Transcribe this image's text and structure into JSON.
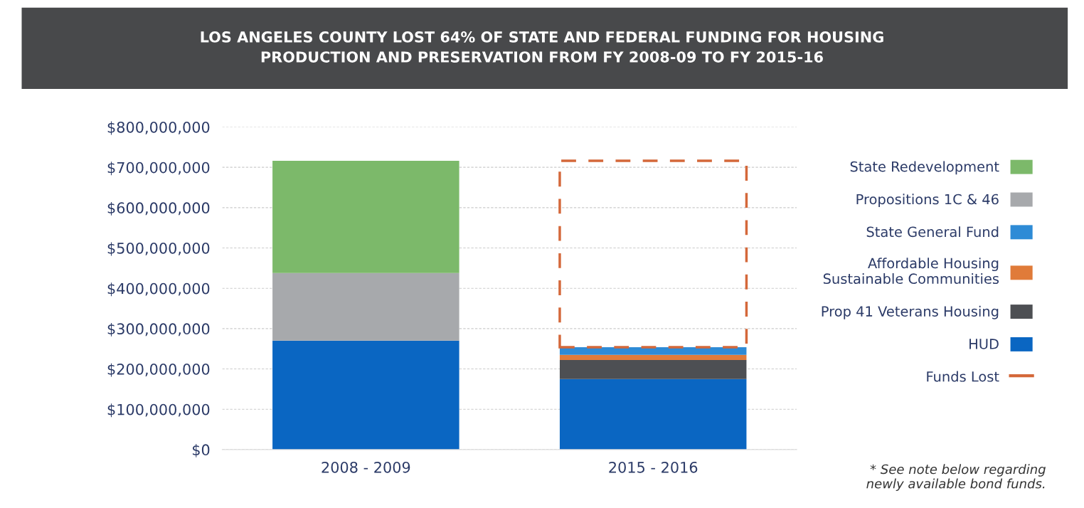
{
  "chart_data": {
    "type": "bar",
    "stacked": true,
    "title": "LOS ANGELES COUNTY LOST 64% OF STATE AND FEDERAL FUNDING FOR HOUSING\nPRODUCTION AND PRESERVATION FROM FY 2008-09 TO FY 2015-16",
    "categories": [
      "2008 - 2009",
      "2015 - 2016"
    ],
    "series": [
      {
        "name": "HUD",
        "color": "#0a66c2",
        "values": [
          270000000,
          175000000
        ]
      },
      {
        "name": "Prop 41 Veterans Housing",
        "color": "#4d4f53",
        "values": [
          0,
          47000000
        ]
      },
      {
        "name": "Affordable Housing\nSustainable Communities",
        "color": "#e07b39",
        "values": [
          0,
          13000000
        ]
      },
      {
        "name": "State General Fund",
        "color": "#2e8bd6",
        "values": [
          0,
          19000000
        ]
      },
      {
        "name": "Propositions 1C & 46",
        "color": "#a7a9ac",
        "values": [
          168000000,
          0
        ]
      },
      {
        "name": "State Redevelopment",
        "color": "#7cb96a",
        "values": [
          278000000,
          0
        ]
      },
      {
        "name": "Funds Lost",
        "color": "#d4683a",
        "line_style": "dashed",
        "values": [
          0,
          462000000
        ]
      }
    ],
    "ylim": [
      0,
      800000000
    ],
    "yticks": [
      {
        "value": 0,
        "label": "$0"
      },
      {
        "value": 100000000,
        "label": "$100,000,000"
      },
      {
        "value": 200000000,
        "label": "$200,000,000"
      },
      {
        "value": 300000000,
        "label": "$300,000,000"
      },
      {
        "value": 400000000,
        "label": "$400,000,000"
      },
      {
        "value": 500000000,
        "label": "$500,000,000"
      },
      {
        "value": 600000000,
        "label": "$600,000,000"
      },
      {
        "value": 700000000,
        "label": "$700,000,000"
      },
      {
        "value": 800000000,
        "label": "$800,000,000"
      }
    ],
    "grid": "y",
    "legend": "right",
    "annotations": [
      "* See note below regarding\nnewly available bond funds."
    ]
  }
}
